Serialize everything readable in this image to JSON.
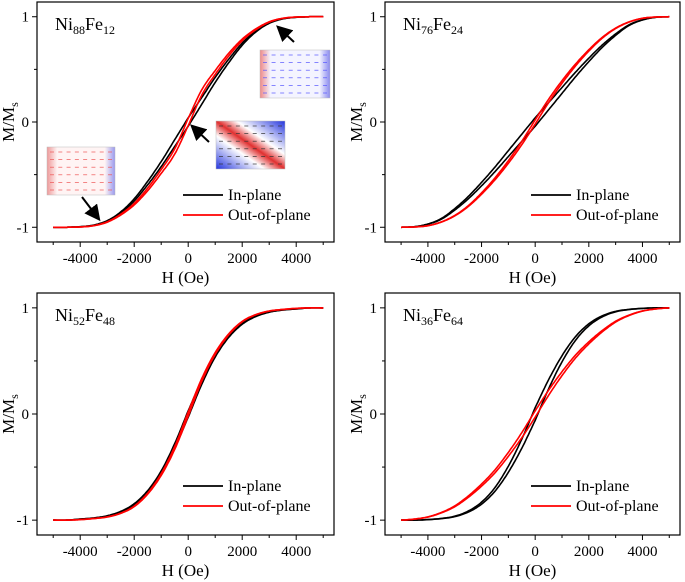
{
  "chart_data": [
    {
      "type": "line",
      "title": [
        "Ni",
        "88",
        "Fe",
        "12"
      ],
      "xlabel": "H (Oe)",
      "ylabel": [
        "M/M",
        "s"
      ],
      "xlim": [
        -5600,
        5400
      ],
      "ylim": [
        -1.14,
        1.14
      ],
      "xticks": [
        -4000,
        -2000,
        0,
        2000,
        4000
      ],
      "xtick_labels": [
        "-4000",
        "-2000",
        "0",
        "2000",
        "4000"
      ],
      "yticks": [
        -1,
        0,
        1
      ],
      "ytick_labels": [
        "-1",
        "0",
        "1"
      ],
      "legend": "bottom-right",
      "curve_note": "Hysteresis loops; M given for H = 0..5000 Oe (step 500), odd-symmetric; branches = M ± half_gap·(1-|M|)",
      "H": [
        0,
        500,
        1000,
        1500,
        2000,
        2500,
        3000,
        3500,
        4000,
        4500,
        5000
      ],
      "series": [
        {
          "name": "In-plane",
          "color": "#000000",
          "M": [
            0,
            0.2,
            0.4,
            0.58,
            0.74,
            0.86,
            0.94,
            0.98,
            0.995,
            1,
            1
          ],
          "half_gap": 0.04
        },
        {
          "name": "Out-of-plane",
          "color": "#ff0000",
          "M": [
            0,
            0.28,
            0.47,
            0.64,
            0.78,
            0.88,
            0.95,
            0.985,
            0.997,
            1,
            1
          ],
          "half_gap": 0.035
        }
      ],
      "has_insets": true
    },
    {
      "type": "line",
      "title": [
        "Ni",
        "76",
        "Fe",
        "24"
      ],
      "xlabel": "H (Oe)",
      "ylabel": [
        "M/M",
        "s"
      ],
      "xlim": [
        -5600,
        5400
      ],
      "ylim": [
        -1.14,
        1.14
      ],
      "xticks": [
        -4000,
        -2000,
        0,
        2000,
        4000
      ],
      "xtick_labels": [
        "-4000",
        "-2000",
        "0",
        "2000",
        "4000"
      ],
      "yticks": [
        -1,
        0,
        1
      ],
      "ytick_labels": [
        "-1",
        "0",
        "1"
      ],
      "legend": "bottom-right",
      "H": [
        0,
        500,
        1000,
        1500,
        2000,
        2500,
        3000,
        3500,
        4000,
        4500,
        5000
      ],
      "series": [
        {
          "name": "In-plane",
          "color": "#000000",
          "M": [
            0,
            0.15,
            0.3,
            0.45,
            0.59,
            0.72,
            0.83,
            0.92,
            0.97,
            0.995,
            1
          ],
          "half_gap": 0.04
        },
        {
          "name": "Out-of-plane",
          "color": "#ff0000",
          "M": [
            0,
            0.2,
            0.38,
            0.54,
            0.68,
            0.8,
            0.89,
            0.95,
            0.985,
            0.997,
            1
          ],
          "half_gap": 0.02
        }
      ]
    },
    {
      "type": "line",
      "title": [
        "Ni",
        "52",
        "Fe",
        "48"
      ],
      "xlabel": "H (Oe)",
      "ylabel": [
        "M/M",
        "s"
      ],
      "xlim": [
        -5600,
        5400
      ],
      "ylim": [
        -1.14,
        1.14
      ],
      "xticks": [
        -4000,
        -2000,
        0,
        2000,
        4000
      ],
      "xtick_labels": [
        "-4000",
        "-2000",
        "0",
        "2000",
        "4000"
      ],
      "yticks": [
        -1,
        0,
        1
      ],
      "ytick_labels": [
        "-1",
        "0",
        "1"
      ],
      "legend": "bottom-right",
      "H": [
        0,
        500,
        1000,
        1500,
        2000,
        2500,
        3000,
        3500,
        4000,
        4500,
        5000
      ],
      "series": [
        {
          "name": "In-plane",
          "color": "#000000",
          "M": [
            0,
            0.3,
            0.55,
            0.73,
            0.85,
            0.92,
            0.96,
            0.98,
            0.99,
            1,
            1
          ],
          "half_gap": 0.03
        },
        {
          "name": "Out-of-plane",
          "color": "#ff0000",
          "M": [
            0,
            0.32,
            0.57,
            0.75,
            0.87,
            0.935,
            0.97,
            0.985,
            0.995,
            1,
            1
          ],
          "half_gap": 0.02
        }
      ]
    },
    {
      "type": "line",
      "title": [
        "Ni",
        "36",
        "Fe",
        "64"
      ],
      "xlabel": "H (Oe)",
      "ylabel": [
        "M/M",
        "s"
      ],
      "xlim": [
        -5600,
        5400
      ],
      "ylim": [
        -1.14,
        1.14
      ],
      "xticks": [
        -4000,
        -2000,
        0,
        2000,
        4000
      ],
      "xtick_labels": [
        "-4000",
        "-2000",
        "0",
        "2000",
        "4000"
      ],
      "yticks": [
        -1,
        0,
        1
      ],
      "ytick_labels": [
        "-1",
        "0",
        "1"
      ],
      "legend": "bottom-right",
      "H": [
        0,
        500,
        1000,
        1500,
        2000,
        2500,
        3000,
        3500,
        4000,
        4500,
        5000
      ],
      "series": [
        {
          "name": "In-plane",
          "color": "#000000",
          "M": [
            0,
            0.28,
            0.52,
            0.71,
            0.84,
            0.92,
            0.965,
            0.985,
            0.995,
            1,
            1
          ],
          "half_gap": 0.06
        },
        {
          "name": "Out-of-plane",
          "color": "#ff0000",
          "M": [
            0,
            0.2,
            0.38,
            0.54,
            0.67,
            0.78,
            0.87,
            0.93,
            0.97,
            0.99,
            1
          ],
          "half_gap": 0.03
        }
      ]
    }
  ]
}
